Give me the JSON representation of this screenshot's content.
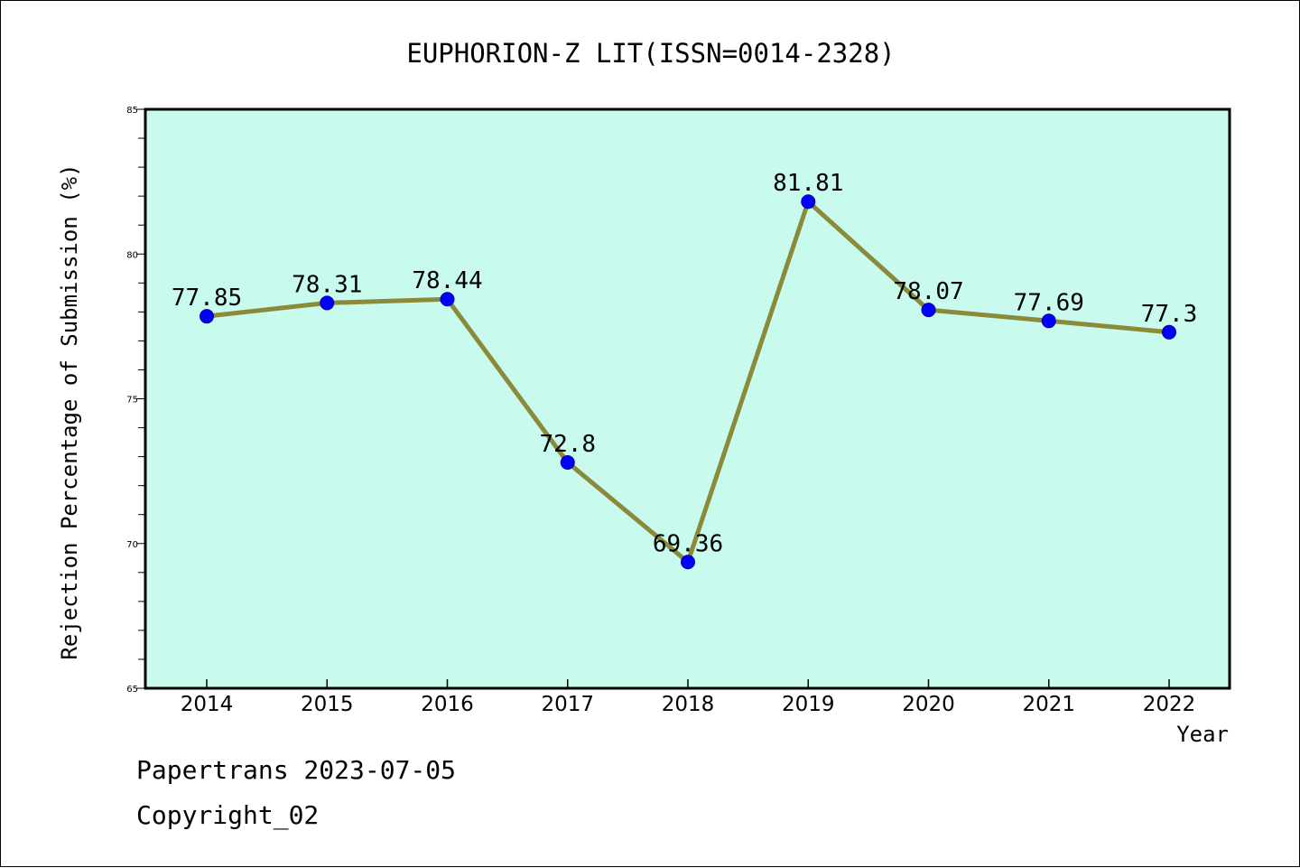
{
  "chart_data": {
    "type": "line",
    "title": "EUPHORION-Z LIT(ISSN=0014-2328)",
    "xlabel": "Year",
    "ylabel": "Rejection Percentage of Submission (%)",
    "categories": [
      "2014",
      "2015",
      "2016",
      "2017",
      "2018",
      "2019",
      "2020",
      "2021",
      "2022"
    ],
    "series": [
      {
        "values": [
          77.85,
          78.31,
          78.44,
          72.8,
          69.36,
          81.81,
          78.07,
          77.69,
          77.3
        ],
        "labels": [
          "77.85",
          "78.31",
          "78.44",
          "72.8",
          "69.36",
          "81.81",
          "78.07",
          "77.69",
          "77.3"
        ]
      }
    ],
    "ylim": [
      65,
      85
    ],
    "yticks": [
      65,
      70,
      75,
      80,
      85
    ],
    "ytick_labels": [
      "65",
      "70",
      "75",
      "80",
      "85"
    ],
    "grid": false,
    "colors": {
      "plot_background": "#c8fbee",
      "line": "#8b8a3a",
      "marker": "#0000ff",
      "axes": "#000000"
    }
  },
  "footer": {
    "line1": "Papertrans 2023-07-05",
    "line2": "Copyright_02"
  }
}
